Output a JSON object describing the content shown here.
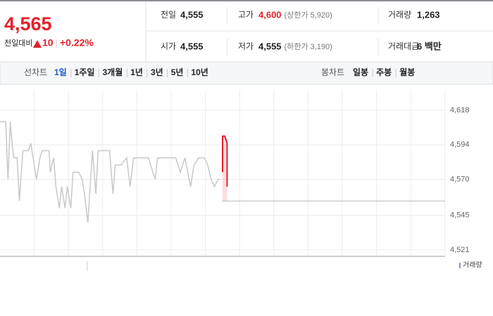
{
  "quote": {
    "price": "4,565",
    "change_label": "전일대비",
    "change": "10",
    "change_pct": "+0.22%"
  },
  "stats": [
    {
      "label": "전일",
      "value": "4,555"
    },
    {
      "label": "고가",
      "value": "4,600",
      "note": "(상한가 5,920)"
    },
    {
      "label": "거래량",
      "value": "1,263"
    },
    {
      "label": "시가",
      "value": "4,555"
    },
    {
      "label": "저가",
      "value": "4,555",
      "note": "(하한가 3,190)"
    },
    {
      "label": "거래대금",
      "value": "6 백만"
    }
  ],
  "tabs": {
    "line_label": "선차트",
    "periods": [
      "1일",
      "1주일",
      "3개월",
      "1년",
      "3년",
      "5년",
      "10년"
    ],
    "selected": 0,
    "candle_label": "봉차트",
    "candles": [
      "일봉",
      "주봉",
      "월봉"
    ]
  },
  "chart_data": {
    "type": "line",
    "legend": "거래량",
    "reference": 4555,
    "xlim": [
      0,
      390
    ],
    "ylim": [
      4521,
      4618
    ],
    "yticks": [
      {
        "value": 4618,
        "label": "4,618"
      },
      {
        "value": 4594,
        "label": "4,594"
      },
      {
        "value": 4570,
        "label": "4,570"
      },
      {
        "value": 4545,
        "label": "4,545"
      },
      {
        "value": 4521,
        "label": "4,521"
      }
    ],
    "x": [
      0,
      5,
      7,
      9,
      10,
      12,
      15,
      17,
      20,
      25,
      27,
      30,
      32,
      35,
      37,
      43,
      44,
      47,
      49,
      52,
      54,
      57,
      59,
      62,
      64,
      69,
      72,
      74,
      77,
      79,
      81,
      84,
      86,
      93,
      96,
      99,
      101,
      106,
      111,
      114,
      117,
      130,
      136,
      138,
      154,
      158,
      162,
      167,
      170,
      174,
      179,
      182,
      185,
      188,
      191,
      193,
      195,
      195,
      195,
      197,
      199,
      199
    ],
    "series": [
      {
        "color": "#c8c8cc",
        "values": [
          4610,
          4610,
          4570,
          4610,
          4600,
          4585,
          4585,
          4555,
          4590,
          4590,
          4595,
          4580,
          4570,
          4585,
          4590,
          4590,
          4575,
          4585,
          4565,
          4550,
          4565,
          4550,
          4565,
          4550,
          4575,
          4575,
          4570,
          4560,
          4540,
          4565,
          4590,
          4560,
          4590,
          4590,
          4590,
          4560,
          4580,
          4580,
          4585,
          4565,
          4585,
          4585,
          4570,
          4585,
          4585,
          4575,
          4585,
          4565,
          4580,
          4585,
          4585,
          4580,
          4570,
          4565,
          4570,
          4570,
          null,
          null,
          null,
          null,
          null,
          null
        ]
      },
      {
        "color": "#e4212b",
        "values": [
          null,
          null,
          null,
          null,
          null,
          null,
          null,
          null,
          null,
          null,
          null,
          null,
          null,
          null,
          null,
          null,
          null,
          null,
          null,
          null,
          null,
          null,
          null,
          null,
          null,
          null,
          null,
          null,
          null,
          null,
          null,
          null,
          null,
          null,
          null,
          null,
          null,
          null,
          null,
          null,
          null,
          null,
          null,
          null,
          null,
          null,
          null,
          null,
          null,
          null,
          null,
          null,
          null,
          null,
          null,
          null,
          null,
          4575,
          4600,
          4600,
          4595,
          4565
        ]
      }
    ]
  }
}
